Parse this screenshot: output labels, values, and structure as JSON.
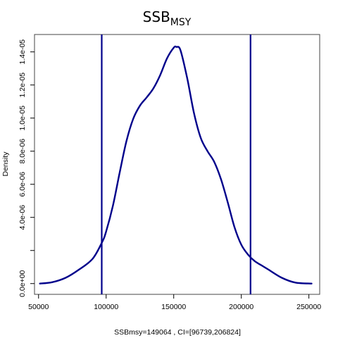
{
  "chart_data": {
    "type": "line",
    "title_main": "SSB",
    "title_sub": "MSY",
    "xlabel": "SSBmsy=149064 , CI=[96739,206824]",
    "ylabel": "Density",
    "xlim": [
      47000,
      258000
    ],
    "ylim": [
      -6.5e-07,
      1.505e-05
    ],
    "x_ticks": [
      {
        "value": 50000,
        "label": "50000"
      },
      {
        "value": 100000,
        "label": "100000"
      },
      {
        "value": 150000,
        "label": "150000"
      },
      {
        "value": 200000,
        "label": "200000"
      },
      {
        "value": 250000,
        "label": "250000"
      }
    ],
    "y_ticks": [
      {
        "value": 0,
        "label": "0.0e+00"
      },
      {
        "value": 2e-06,
        "label": ""
      },
      {
        "value": 4e-06,
        "label": "4.0e-06"
      },
      {
        "value": 6e-06,
        "label": "6.0e-06"
      },
      {
        "value": 8e-06,
        "label": "8.0e-06"
      },
      {
        "value": 1e-05,
        "label": "1.0e-05"
      },
      {
        "value": 1.2e-05,
        "label": "1.2e-05"
      },
      {
        "value": 1.4e-05,
        "label": "1.4e-05"
      }
    ],
    "series": [
      {
        "color": "#00008B",
        "x": [
          51000,
          60000,
          70000,
          80000,
          90000,
          97000,
          100000,
          105000,
          110000,
          115000,
          120000,
          125000,
          130000,
          135000,
          140000,
          145000,
          150000,
          152000,
          155000,
          160000,
          165000,
          170000,
          175000,
          180000,
          185000,
          190000,
          195000,
          200000,
          205000,
          210000,
          215000,
          220000,
          230000,
          240000,
          252000
        ],
        "y": [
          0,
          8e-08,
          3.5e-07,
          8.5e-07,
          1.5e-06,
          2.5e-06,
          3.15e-06,
          4.7e-06,
          6.7e-06,
          8.6e-06,
          9.95e-06,
          1.075e-05,
          1.125e-05,
          1.18e-05,
          1.26e-05,
          1.36e-05,
          1.425e-05,
          1.43e-05,
          1.41e-05,
          1.24e-05,
          1.03e-05,
          8.8e-06,
          8e-06,
          7.35e-06,
          6.3e-06,
          4.9e-06,
          3.4e-06,
          2.35e-06,
          1.75e-06,
          1.35e-06,
          1.1e-06,
          8.5e-07,
          3.5e-07,
          6e-08,
          0
        ]
      }
    ],
    "vlines": [
      {
        "x": 96739,
        "color": "#00008B"
      },
      {
        "x": 206824,
        "color": "#00008B"
      }
    ],
    "grid": false
  }
}
